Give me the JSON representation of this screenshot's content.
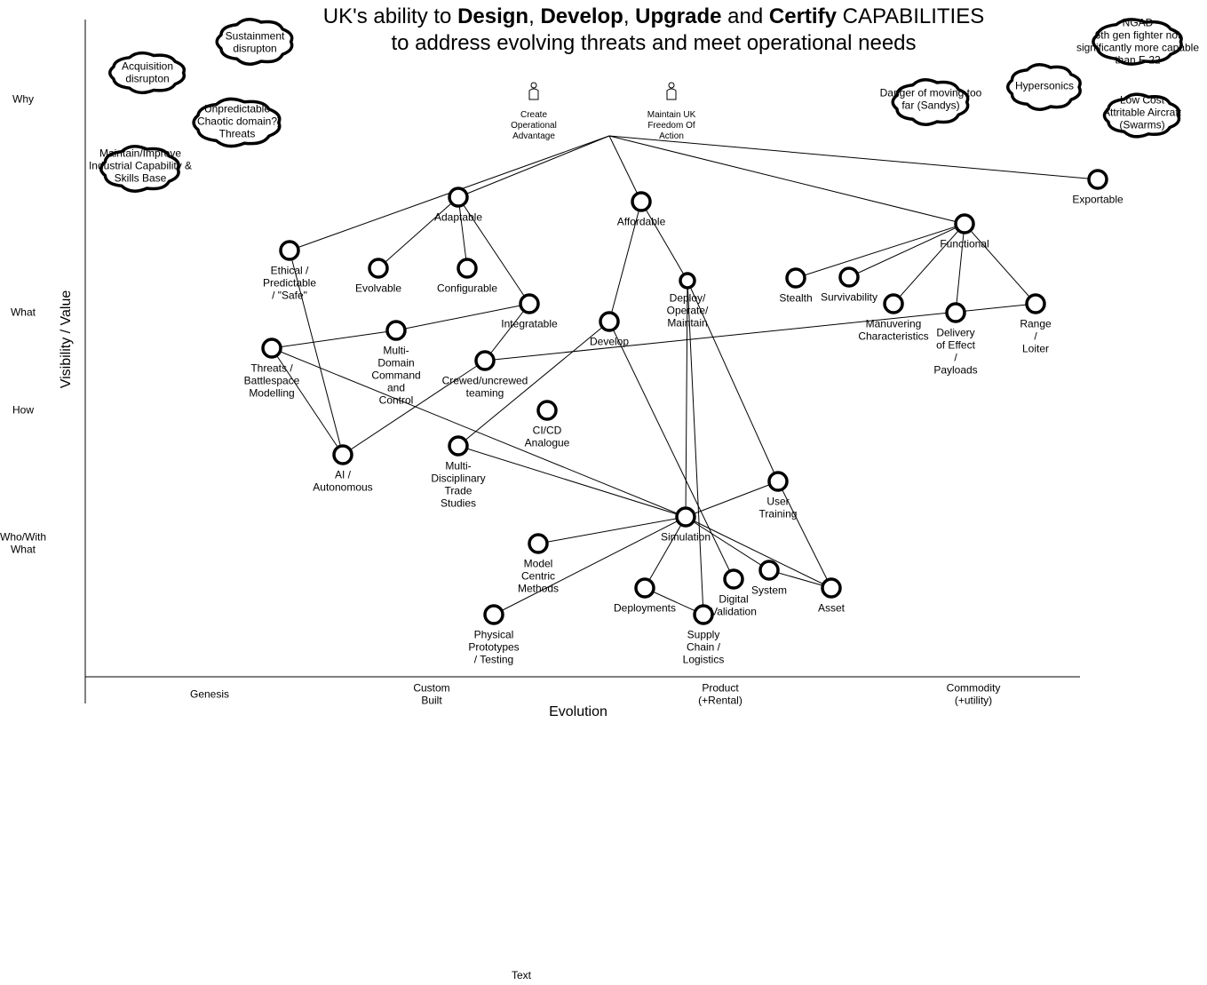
{
  "title": {
    "prefix": "UK's ability to ",
    "w1": "Design",
    "sep1": ", ",
    "w2": "Develop",
    "sep2": ", ",
    "w3": "Upgrade",
    "sep3": " and ",
    "w4": "Certify",
    "suffix": " CAPABILITIES",
    "line2": "to address evolving threats and meet operational needs"
  },
  "axes": {
    "y_label": "Visibility / Value",
    "x_label": "Evolution",
    "rows": [
      "Why",
      "What",
      "How",
      "Who/With\nWhat"
    ],
    "stages": [
      "Genesis",
      "Custom\nBuilt",
      "Product\n(+Rental)",
      "Commodity\n(+utility)"
    ]
  },
  "users": [
    {
      "id": "u1",
      "label": "Create\nOperational\nAdvantage"
    },
    {
      "id": "u2",
      "label": "Maintain UK\nFreedom Of\nAction"
    }
  ],
  "clouds": [
    {
      "id": "sustainment",
      "label": "Sustainment\ndisrupton"
    },
    {
      "id": "acquisition",
      "label": "Acquisition\ndisrupton"
    },
    {
      "id": "unpredictable",
      "label": "Unpredictable\n(Chaotic domain?)\nThreats"
    },
    {
      "id": "industrial",
      "label": "Maintain/Improve\nIndustrial Capability &\nSkills Base"
    },
    {
      "id": "danger",
      "label": "Danger of moving too\nfar (Sandys)"
    },
    {
      "id": "hypersonics",
      "label": "Hypersonics"
    },
    {
      "id": "ngad",
      "label": "NGAD\n6th gen fighter not\nsignificantly more capable\nthan F-22"
    },
    {
      "id": "lowcost",
      "label": "Low Cost\nAttritable Aircraft\n(Swarms)"
    }
  ],
  "components": [
    {
      "id": "adaptable",
      "label": "Adaptable"
    },
    {
      "id": "affordable",
      "label": "Affordable"
    },
    {
      "id": "exportable",
      "label": "Exportable"
    },
    {
      "id": "functional",
      "label": "Functional"
    },
    {
      "id": "ethical",
      "label": "Ethical /\nPredictable\n/ \"Safe\""
    },
    {
      "id": "evolvable",
      "label": "Evolvable"
    },
    {
      "id": "configurable",
      "label": "Configurable"
    },
    {
      "id": "integratable",
      "label": "Integratable"
    },
    {
      "id": "deploy",
      "label": "Deploy/\nOperate/\nMaintain"
    },
    {
      "id": "stealth",
      "label": "Stealth"
    },
    {
      "id": "survivability",
      "label": "Survivability"
    },
    {
      "id": "manuvering",
      "label": "Manuvering\nCharacteristics"
    },
    {
      "id": "delivery",
      "label": "Delivery\nof Effect\n/\nPayloads"
    },
    {
      "id": "range",
      "label": "Range\n/\nLoiter"
    },
    {
      "id": "threats",
      "label": "Threats /\nBattlespace\nModelling"
    },
    {
      "id": "mdc2",
      "label": "Multi-\nDomain\nCommand\nand\nControl"
    },
    {
      "id": "develop",
      "label": "Develop"
    },
    {
      "id": "crewed",
      "label": "Crewed/uncrewed\nteaming"
    },
    {
      "id": "cicd",
      "label": "CI/CD\nAnalogue"
    },
    {
      "id": "ai",
      "label": "AI /\nAutonomous"
    },
    {
      "id": "trade",
      "label": "Multi-\nDisciplinary\nTrade\nStudies"
    },
    {
      "id": "usertraining",
      "label": "User\nTraining"
    },
    {
      "id": "simulation",
      "label": "Simulation"
    },
    {
      "id": "model",
      "label": "Model\nCentric\nMethods"
    },
    {
      "id": "physical",
      "label": "Physical\nPrototypes\n/ Testing"
    },
    {
      "id": "deployments",
      "label": "Deployments"
    },
    {
      "id": "supply",
      "label": "Supply\nChain /\nLogistics"
    },
    {
      "id": "digital",
      "label": "Digital\nValidation"
    },
    {
      "id": "system",
      "label": "System"
    },
    {
      "id": "asset",
      "label": "Asset"
    }
  ],
  "links": [
    [
      "hub",
      "adaptable"
    ],
    [
      "hub",
      "affordable"
    ],
    [
      "hub",
      "functional"
    ],
    [
      "hub",
      "exportable"
    ],
    [
      "hub",
      "ethical"
    ],
    [
      "adaptable",
      "evolvable"
    ],
    [
      "adaptable",
      "configurable"
    ],
    [
      "adaptable",
      "integratable"
    ],
    [
      "affordable",
      "develop"
    ],
    [
      "affordable",
      "deploy"
    ],
    [
      "functional",
      "stealth"
    ],
    [
      "functional",
      "survivability"
    ],
    [
      "functional",
      "manuvering"
    ],
    [
      "functional",
      "delivery"
    ],
    [
      "functional",
      "range"
    ],
    [
      "integratable",
      "mdc2"
    ],
    [
      "integratable",
      "crewed"
    ],
    [
      "mdc2",
      "threats"
    ],
    [
      "threats",
      "ai"
    ],
    [
      "threats",
      "simulation"
    ],
    [
      "ethical",
      "ai"
    ],
    [
      "crewed",
      "ai"
    ],
    [
      "crewed",
      "range"
    ],
    [
      "develop",
      "trade"
    ],
    [
      "develop",
      "digital"
    ],
    [
      "deploy",
      "simulation"
    ],
    [
      "deploy",
      "supply"
    ],
    [
      "deploy",
      "usertraining"
    ],
    [
      "trade",
      "simulation"
    ],
    [
      "usertraining",
      "simulation"
    ],
    [
      "usertraining",
      "asset"
    ],
    [
      "simulation",
      "model"
    ],
    [
      "simulation",
      "physical"
    ],
    [
      "simulation",
      "deployments"
    ],
    [
      "simulation",
      "system"
    ],
    [
      "simulation",
      "asset"
    ],
    [
      "deployments",
      "supply"
    ],
    [
      "system",
      "asset"
    ]
  ],
  "footer": {
    "text": "Text"
  }
}
